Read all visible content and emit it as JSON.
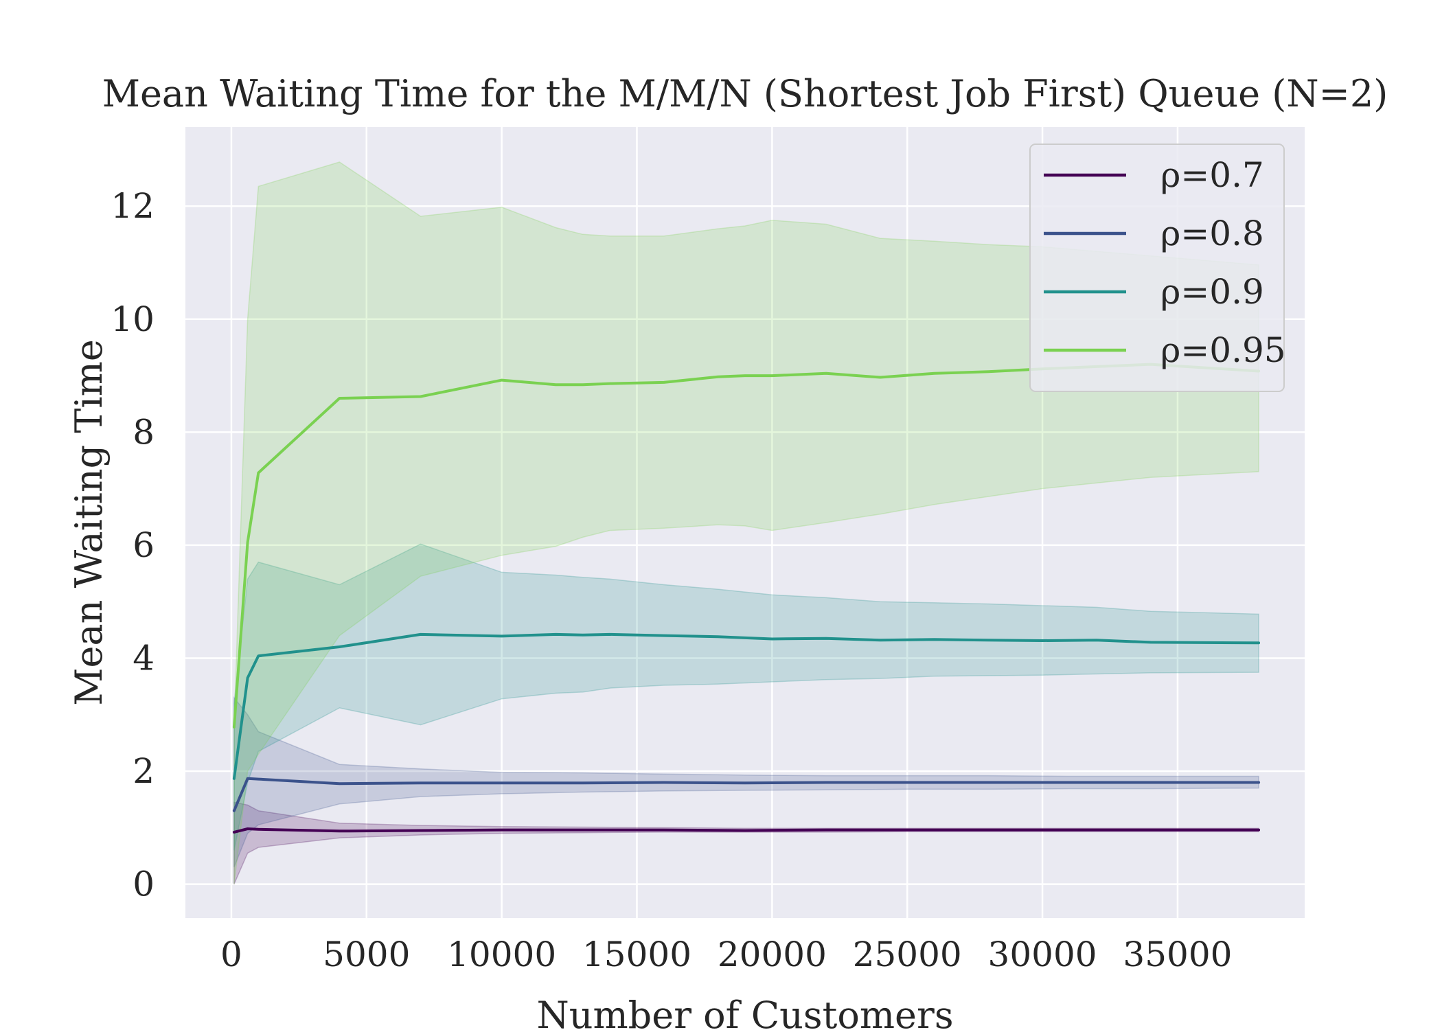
{
  "chart_data": {
    "type": "line",
    "title": "Mean Waiting Time for the M/M/N (Shortest Job First) Queue (N=2)",
    "xlabel": "Number of Customers",
    "ylabel": "Mean Waiting Time",
    "xlim": [
      -1700,
      39700
    ],
    "ylim": [
      -0.6,
      13.4
    ],
    "xticks": [
      0,
      5000,
      10000,
      15000,
      20000,
      25000,
      30000,
      35000
    ],
    "yticks": [
      0,
      2,
      4,
      6,
      8,
      10,
      12
    ],
    "xtick_labels": [
      "0",
      "5000",
      "10000",
      "15000",
      "20000",
      "25000",
      "30000",
      "35000"
    ],
    "ytick_labels": [
      "0",
      "2",
      "4",
      "6",
      "8",
      "10",
      "12"
    ],
    "grid": true,
    "legend_position": "top-right",
    "series": [
      {
        "name": "ρ=0.7",
        "color": "#440154",
        "x": [
          100,
          600,
          1000,
          4000,
          7000,
          10000,
          13000,
          16000,
          19000,
          22000,
          25000,
          28000,
          31000,
          34000,
          38000
        ],
        "y": [
          0.92,
          0.98,
          0.97,
          0.94,
          0.95,
          0.96,
          0.96,
          0.96,
          0.95,
          0.96,
          0.96,
          0.96,
          0.96,
          0.96,
          0.96
        ],
        "lower": [
          0.0,
          0.55,
          0.65,
          0.82,
          0.87,
          0.9,
          0.91,
          0.92,
          0.92,
          0.92,
          0.93,
          0.93,
          0.93,
          0.93,
          0.93
        ],
        "upper": [
          1.45,
          1.4,
          1.3,
          1.08,
          1.04,
          1.02,
          1.01,
          1.0,
          0.99,
          0.99,
          0.99,
          0.99,
          0.99,
          0.99,
          0.99
        ]
      },
      {
        "name": "ρ=0.8",
        "color": "#3b528b",
        "x": [
          100,
          600,
          1000,
          4000,
          7000,
          10000,
          13000,
          16000,
          19000,
          22000,
          25000,
          28000,
          31000,
          34000,
          38000
        ],
        "y": [
          1.3,
          1.87,
          1.86,
          1.78,
          1.79,
          1.79,
          1.79,
          1.8,
          1.79,
          1.8,
          1.8,
          1.8,
          1.8,
          1.8,
          1.8
        ],
        "lower": [
          0.3,
          0.9,
          1.05,
          1.42,
          1.55,
          1.6,
          1.63,
          1.65,
          1.66,
          1.67,
          1.68,
          1.68,
          1.69,
          1.69,
          1.7
        ],
        "upper": [
          3.3,
          3.0,
          2.7,
          2.12,
          2.04,
          1.98,
          1.97,
          1.95,
          1.93,
          1.92,
          1.92,
          1.92,
          1.91,
          1.91,
          1.91
        ]
      },
      {
        "name": "ρ=0.9",
        "color": "#21918c",
        "x": [
          100,
          600,
          1000,
          4000,
          7000,
          10000,
          12000,
          13000,
          14000,
          16000,
          18000,
          20000,
          22000,
          24000,
          26000,
          28000,
          30000,
          32000,
          34000,
          38000
        ],
        "y": [
          1.87,
          3.65,
          4.04,
          4.2,
          4.42,
          4.39,
          4.42,
          4.41,
          4.42,
          4.4,
          4.38,
          4.34,
          4.35,
          4.32,
          4.33,
          4.32,
          4.31,
          4.32,
          4.28,
          4.27
        ],
        "lower": [
          0.6,
          1.8,
          2.35,
          3.12,
          2.82,
          3.28,
          3.38,
          3.4,
          3.47,
          3.52,
          3.54,
          3.58,
          3.62,
          3.64,
          3.68,
          3.69,
          3.7,
          3.72,
          3.74,
          3.75
        ],
        "upper": [
          3.2,
          5.4,
          5.7,
          5.3,
          6.02,
          5.52,
          5.47,
          5.43,
          5.4,
          5.3,
          5.22,
          5.12,
          5.07,
          5.0,
          4.98,
          4.96,
          4.93,
          4.9,
          4.83,
          4.78
        ]
      },
      {
        "name": "ρ=0.95",
        "color": "#7ad151",
        "x": [
          100,
          600,
          1000,
          4000,
          7000,
          10000,
          12000,
          13000,
          14000,
          16000,
          18000,
          19000,
          20000,
          22000,
          24000,
          26000,
          28000,
          30000,
          32000,
          34000,
          38000
        ],
        "y": [
          2.78,
          6.05,
          7.28,
          8.6,
          8.63,
          8.92,
          8.84,
          8.84,
          8.86,
          8.88,
          8.98,
          9.0,
          9.0,
          9.04,
          8.97,
          9.04,
          9.07,
          9.12,
          9.16,
          9.2,
          9.08
        ],
        "lower": [
          0.0,
          2.0,
          2.3,
          4.4,
          5.45,
          5.82,
          5.98,
          6.14,
          6.26,
          6.3,
          6.36,
          6.34,
          6.26,
          6.4,
          6.55,
          6.72,
          6.86,
          7.0,
          7.1,
          7.2,
          7.3
        ],
        "upper": [
          2.78,
          10.0,
          12.35,
          12.78,
          11.82,
          11.98,
          11.62,
          11.5,
          11.47,
          11.47,
          11.6,
          11.65,
          11.75,
          11.68,
          11.43,
          11.38,
          11.32,
          11.28,
          11.2,
          11.12,
          10.96
        ]
      }
    ]
  }
}
